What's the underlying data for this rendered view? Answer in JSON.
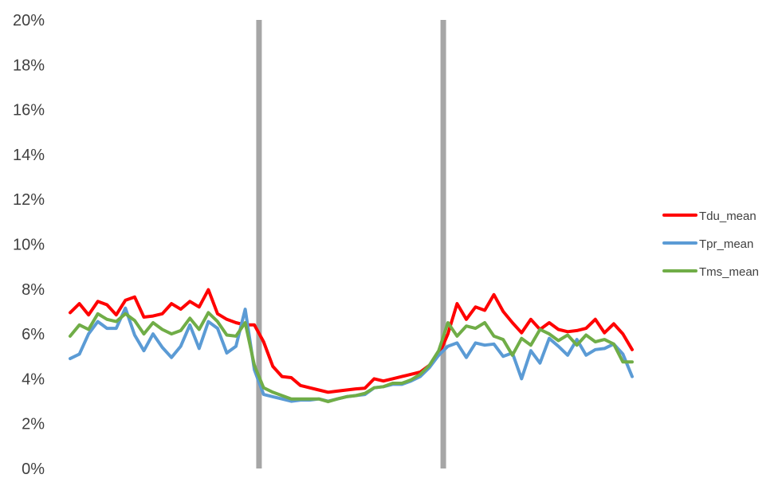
{
  "chart_data": {
    "type": "line",
    "title": "",
    "xlabel": "",
    "ylabel": "",
    "ylim": [
      0,
      0.2
    ],
    "y_ticks": [
      {
        "value": 0.0,
        "label": "0%"
      },
      {
        "value": 0.02,
        "label": "2%"
      },
      {
        "value": 0.04,
        "label": "4%"
      },
      {
        "value": 0.06,
        "label": "6%"
      },
      {
        "value": 0.08,
        "label": "8%"
      },
      {
        "value": 0.1,
        "label": "10%"
      },
      {
        "value": 0.12,
        "label": "12%"
      },
      {
        "value": 0.14,
        "label": "14%"
      },
      {
        "value": 0.16,
        "label": "16%"
      },
      {
        "value": 0.18,
        "label": "18%"
      },
      {
        "value": 0.2,
        "label": "20%"
      }
    ],
    "grid": "none",
    "legend_position": "right",
    "x_count": 62,
    "vertical_lines": [
      20.5,
      40.5
    ],
    "vertical_line_color": "#a6a6a6",
    "series": [
      {
        "name": "Tdu_mean",
        "color": "#ff0000",
        "values": [
          0.0695,
          0.0735,
          0.0685,
          0.0745,
          0.073,
          0.0685,
          0.075,
          0.0765,
          0.0675,
          0.068,
          0.069,
          0.0735,
          0.071,
          0.0745,
          0.072,
          0.0797,
          0.069,
          0.0665,
          0.065,
          0.064,
          0.064,
          0.0565,
          0.0455,
          0.041,
          0.0405,
          0.037,
          0.036,
          0.035,
          0.034,
          0.0345,
          0.035,
          0.0355,
          0.0358,
          0.04,
          0.039,
          0.04,
          0.041,
          0.042,
          0.043,
          0.046,
          0.0505,
          0.06,
          0.0735,
          0.0665,
          0.072,
          0.0705,
          0.0775,
          0.07,
          0.065,
          0.0605,
          0.0665,
          0.062,
          0.065,
          0.062,
          0.061,
          0.0615,
          0.0625,
          0.0665,
          0.0605,
          0.0645,
          0.06,
          0.053
        ]
      },
      {
        "name": "Tpr_mean",
        "color": "#5b9bd5",
        "values": [
          0.049,
          0.051,
          0.06,
          0.0655,
          0.0625,
          0.0625,
          0.0715,
          0.0595,
          0.0525,
          0.06,
          0.054,
          0.0495,
          0.0545,
          0.064,
          0.0535,
          0.0655,
          0.0625,
          0.0515,
          0.0545,
          0.071,
          0.044,
          0.033,
          0.032,
          0.031,
          0.03,
          0.0305,
          0.0305,
          0.031,
          0.03,
          0.031,
          0.032,
          0.0325,
          0.033,
          0.036,
          0.0365,
          0.0375,
          0.0375,
          0.039,
          0.041,
          0.045,
          0.0505,
          0.0545,
          0.056,
          0.0495,
          0.056,
          0.055,
          0.0555,
          0.05,
          0.0515,
          0.04,
          0.0525,
          0.047,
          0.058,
          0.0545,
          0.0505,
          0.0575,
          0.0505,
          0.053,
          0.0535,
          0.0555,
          0.051,
          0.041
        ]
      },
      {
        "name": "Tms_mean",
        "color": "#70ad47",
        "values": [
          0.059,
          0.064,
          0.062,
          0.069,
          0.0665,
          0.0655,
          0.069,
          0.066,
          0.06,
          0.065,
          0.062,
          0.06,
          0.0615,
          0.067,
          0.062,
          0.0695,
          0.0655,
          0.0595,
          0.059,
          0.065,
          0.046,
          0.036,
          0.034,
          0.0325,
          0.031,
          0.031,
          0.031,
          0.031,
          0.0298,
          0.031,
          0.032,
          0.0325,
          0.0335,
          0.036,
          0.0365,
          0.038,
          0.038,
          0.0395,
          0.042,
          0.046,
          0.0525,
          0.065,
          0.059,
          0.0635,
          0.0625,
          0.065,
          0.059,
          0.0575,
          0.0505,
          0.058,
          0.055,
          0.062,
          0.06,
          0.057,
          0.0595,
          0.055,
          0.0595,
          0.0565,
          0.0575,
          0.0555,
          0.0475,
          0.0475
        ]
      }
    ]
  }
}
